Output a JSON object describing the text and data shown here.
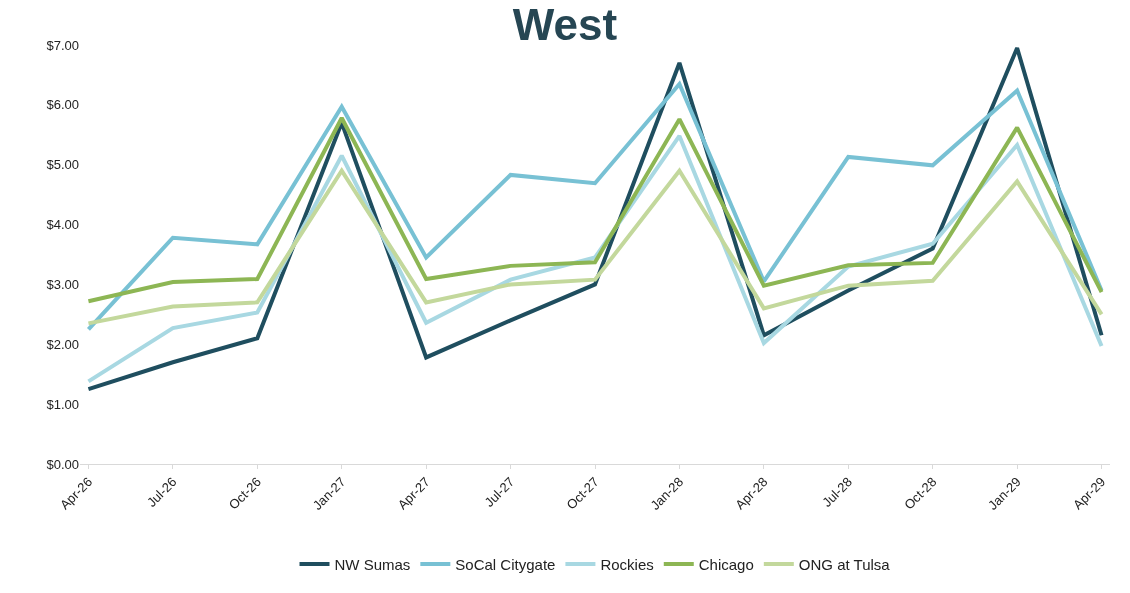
{
  "chart_data": {
    "type": "line",
    "title": "West",
    "categories": [
      "Apr-26",
      "Jul-26",
      "Oct-26",
      "Jan-27",
      "Apr-27",
      "Jul-27",
      "Oct-27",
      "Jan-28",
      "Apr-28",
      "Jul-28",
      "Oct-28",
      "Jan-29",
      "Apr-29"
    ],
    "series": [
      {
        "name": "NW Sumas",
        "color": "#1f4e5f",
        "values": [
          1.25,
          1.7,
          2.1,
          5.7,
          1.78,
          2.4,
          3.0,
          6.7,
          2.15,
          2.9,
          3.6,
          6.95,
          2.15
        ]
      },
      {
        "name": "SoCal Citygate",
        "color": "#78c1d4",
        "values": [
          2.25,
          3.78,
          3.67,
          5.97,
          3.45,
          4.83,
          4.69,
          6.35,
          3.05,
          5.13,
          4.99,
          6.24,
          2.9
        ]
      },
      {
        "name": "Rockies",
        "color": "#a8d8e2",
        "values": [
          1.38,
          2.27,
          2.53,
          5.15,
          2.36,
          3.08,
          3.45,
          5.48,
          2.02,
          3.3,
          3.68,
          5.33,
          1.97
        ]
      },
      {
        "name": "Chicago",
        "color": "#8db654",
        "values": [
          2.72,
          3.04,
          3.09,
          5.78,
          3.09,
          3.31,
          3.37,
          5.76,
          2.98,
          3.32,
          3.36,
          5.62,
          2.87
        ]
      },
      {
        "name": "ONG at Tulsa",
        "color": "#c3d89c",
        "values": [
          2.35,
          2.63,
          2.7,
          4.9,
          2.7,
          3.0,
          3.08,
          4.9,
          2.6,
          2.98,
          3.06,
          4.72,
          2.5
        ]
      }
    ],
    "ylim": [
      0,
      7
    ],
    "yticks": [
      {
        "value": 0,
        "label": "$0.00"
      },
      {
        "value": 1,
        "label": "$1.00"
      },
      {
        "value": 2,
        "label": "$2.00"
      },
      {
        "value": 3,
        "label": "$3.00"
      },
      {
        "value": 4,
        "label": "$4.00"
      },
      {
        "value": 5,
        "label": "$5.00"
      },
      {
        "value": 6,
        "label": "$6.00"
      },
      {
        "value": 7,
        "label": "$7.00"
      }
    ],
    "legend": "bottom",
    "marker": "none",
    "line_style": "solid"
  }
}
